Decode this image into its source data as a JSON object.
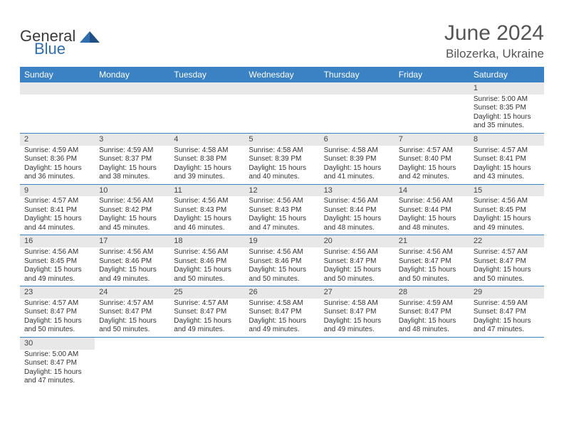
{
  "logo": {
    "general": "General",
    "blue": "Blue"
  },
  "header": {
    "title": "June 2024",
    "location": "Bilozerka, Ukraine"
  },
  "colors": {
    "header_bg": "#3b82c4",
    "header_text": "#ffffff",
    "daynum_bg": "#e8e8e8",
    "border": "#3b82c4",
    "text": "#333333",
    "title": "#555555"
  },
  "weekdays": [
    "Sunday",
    "Monday",
    "Tuesday",
    "Wednesday",
    "Thursday",
    "Friday",
    "Saturday"
  ],
  "weeks": [
    [
      null,
      null,
      null,
      null,
      null,
      null,
      {
        "n": "1",
        "sr": "Sunrise: 5:00 AM",
        "ss": "Sunset: 8:35 PM",
        "d1": "Daylight: 15 hours",
        "d2": "and 35 minutes."
      }
    ],
    [
      {
        "n": "2",
        "sr": "Sunrise: 4:59 AM",
        "ss": "Sunset: 8:36 PM",
        "d1": "Daylight: 15 hours",
        "d2": "and 36 minutes."
      },
      {
        "n": "3",
        "sr": "Sunrise: 4:59 AM",
        "ss": "Sunset: 8:37 PM",
        "d1": "Daylight: 15 hours",
        "d2": "and 38 minutes."
      },
      {
        "n": "4",
        "sr": "Sunrise: 4:58 AM",
        "ss": "Sunset: 8:38 PM",
        "d1": "Daylight: 15 hours",
        "d2": "and 39 minutes."
      },
      {
        "n": "5",
        "sr": "Sunrise: 4:58 AM",
        "ss": "Sunset: 8:39 PM",
        "d1": "Daylight: 15 hours",
        "d2": "and 40 minutes."
      },
      {
        "n": "6",
        "sr": "Sunrise: 4:58 AM",
        "ss": "Sunset: 8:39 PM",
        "d1": "Daylight: 15 hours",
        "d2": "and 41 minutes."
      },
      {
        "n": "7",
        "sr": "Sunrise: 4:57 AM",
        "ss": "Sunset: 8:40 PM",
        "d1": "Daylight: 15 hours",
        "d2": "and 42 minutes."
      },
      {
        "n": "8",
        "sr": "Sunrise: 4:57 AM",
        "ss": "Sunset: 8:41 PM",
        "d1": "Daylight: 15 hours",
        "d2": "and 43 minutes."
      }
    ],
    [
      {
        "n": "9",
        "sr": "Sunrise: 4:57 AM",
        "ss": "Sunset: 8:41 PM",
        "d1": "Daylight: 15 hours",
        "d2": "and 44 minutes."
      },
      {
        "n": "10",
        "sr": "Sunrise: 4:56 AM",
        "ss": "Sunset: 8:42 PM",
        "d1": "Daylight: 15 hours",
        "d2": "and 45 minutes."
      },
      {
        "n": "11",
        "sr": "Sunrise: 4:56 AM",
        "ss": "Sunset: 8:43 PM",
        "d1": "Daylight: 15 hours",
        "d2": "and 46 minutes."
      },
      {
        "n": "12",
        "sr": "Sunrise: 4:56 AM",
        "ss": "Sunset: 8:43 PM",
        "d1": "Daylight: 15 hours",
        "d2": "and 47 minutes."
      },
      {
        "n": "13",
        "sr": "Sunrise: 4:56 AM",
        "ss": "Sunset: 8:44 PM",
        "d1": "Daylight: 15 hours",
        "d2": "and 48 minutes."
      },
      {
        "n": "14",
        "sr": "Sunrise: 4:56 AM",
        "ss": "Sunset: 8:44 PM",
        "d1": "Daylight: 15 hours",
        "d2": "and 48 minutes."
      },
      {
        "n": "15",
        "sr": "Sunrise: 4:56 AM",
        "ss": "Sunset: 8:45 PM",
        "d1": "Daylight: 15 hours",
        "d2": "and 49 minutes."
      }
    ],
    [
      {
        "n": "16",
        "sr": "Sunrise: 4:56 AM",
        "ss": "Sunset: 8:45 PM",
        "d1": "Daylight: 15 hours",
        "d2": "and 49 minutes."
      },
      {
        "n": "17",
        "sr": "Sunrise: 4:56 AM",
        "ss": "Sunset: 8:46 PM",
        "d1": "Daylight: 15 hours",
        "d2": "and 49 minutes."
      },
      {
        "n": "18",
        "sr": "Sunrise: 4:56 AM",
        "ss": "Sunset: 8:46 PM",
        "d1": "Daylight: 15 hours",
        "d2": "and 50 minutes."
      },
      {
        "n": "19",
        "sr": "Sunrise: 4:56 AM",
        "ss": "Sunset: 8:46 PM",
        "d1": "Daylight: 15 hours",
        "d2": "and 50 minutes."
      },
      {
        "n": "20",
        "sr": "Sunrise: 4:56 AM",
        "ss": "Sunset: 8:47 PM",
        "d1": "Daylight: 15 hours",
        "d2": "and 50 minutes."
      },
      {
        "n": "21",
        "sr": "Sunrise: 4:56 AM",
        "ss": "Sunset: 8:47 PM",
        "d1": "Daylight: 15 hours",
        "d2": "and 50 minutes."
      },
      {
        "n": "22",
        "sr": "Sunrise: 4:57 AM",
        "ss": "Sunset: 8:47 PM",
        "d1": "Daylight: 15 hours",
        "d2": "and 50 minutes."
      }
    ],
    [
      {
        "n": "23",
        "sr": "Sunrise: 4:57 AM",
        "ss": "Sunset: 8:47 PM",
        "d1": "Daylight: 15 hours",
        "d2": "and 50 minutes."
      },
      {
        "n": "24",
        "sr": "Sunrise: 4:57 AM",
        "ss": "Sunset: 8:47 PM",
        "d1": "Daylight: 15 hours",
        "d2": "and 50 minutes."
      },
      {
        "n": "25",
        "sr": "Sunrise: 4:57 AM",
        "ss": "Sunset: 8:47 PM",
        "d1": "Daylight: 15 hours",
        "d2": "and 49 minutes."
      },
      {
        "n": "26",
        "sr": "Sunrise: 4:58 AM",
        "ss": "Sunset: 8:47 PM",
        "d1": "Daylight: 15 hours",
        "d2": "and 49 minutes."
      },
      {
        "n": "27",
        "sr": "Sunrise: 4:58 AM",
        "ss": "Sunset: 8:47 PM",
        "d1": "Daylight: 15 hours",
        "d2": "and 49 minutes."
      },
      {
        "n": "28",
        "sr": "Sunrise: 4:59 AM",
        "ss": "Sunset: 8:47 PM",
        "d1": "Daylight: 15 hours",
        "d2": "and 48 minutes."
      },
      {
        "n": "29",
        "sr": "Sunrise: 4:59 AM",
        "ss": "Sunset: 8:47 PM",
        "d1": "Daylight: 15 hours",
        "d2": "and 47 minutes."
      }
    ],
    [
      {
        "n": "30",
        "sr": "Sunrise: 5:00 AM",
        "ss": "Sunset: 8:47 PM",
        "d1": "Daylight: 15 hours",
        "d2": "and 47 minutes."
      },
      null,
      null,
      null,
      null,
      null,
      null
    ]
  ]
}
